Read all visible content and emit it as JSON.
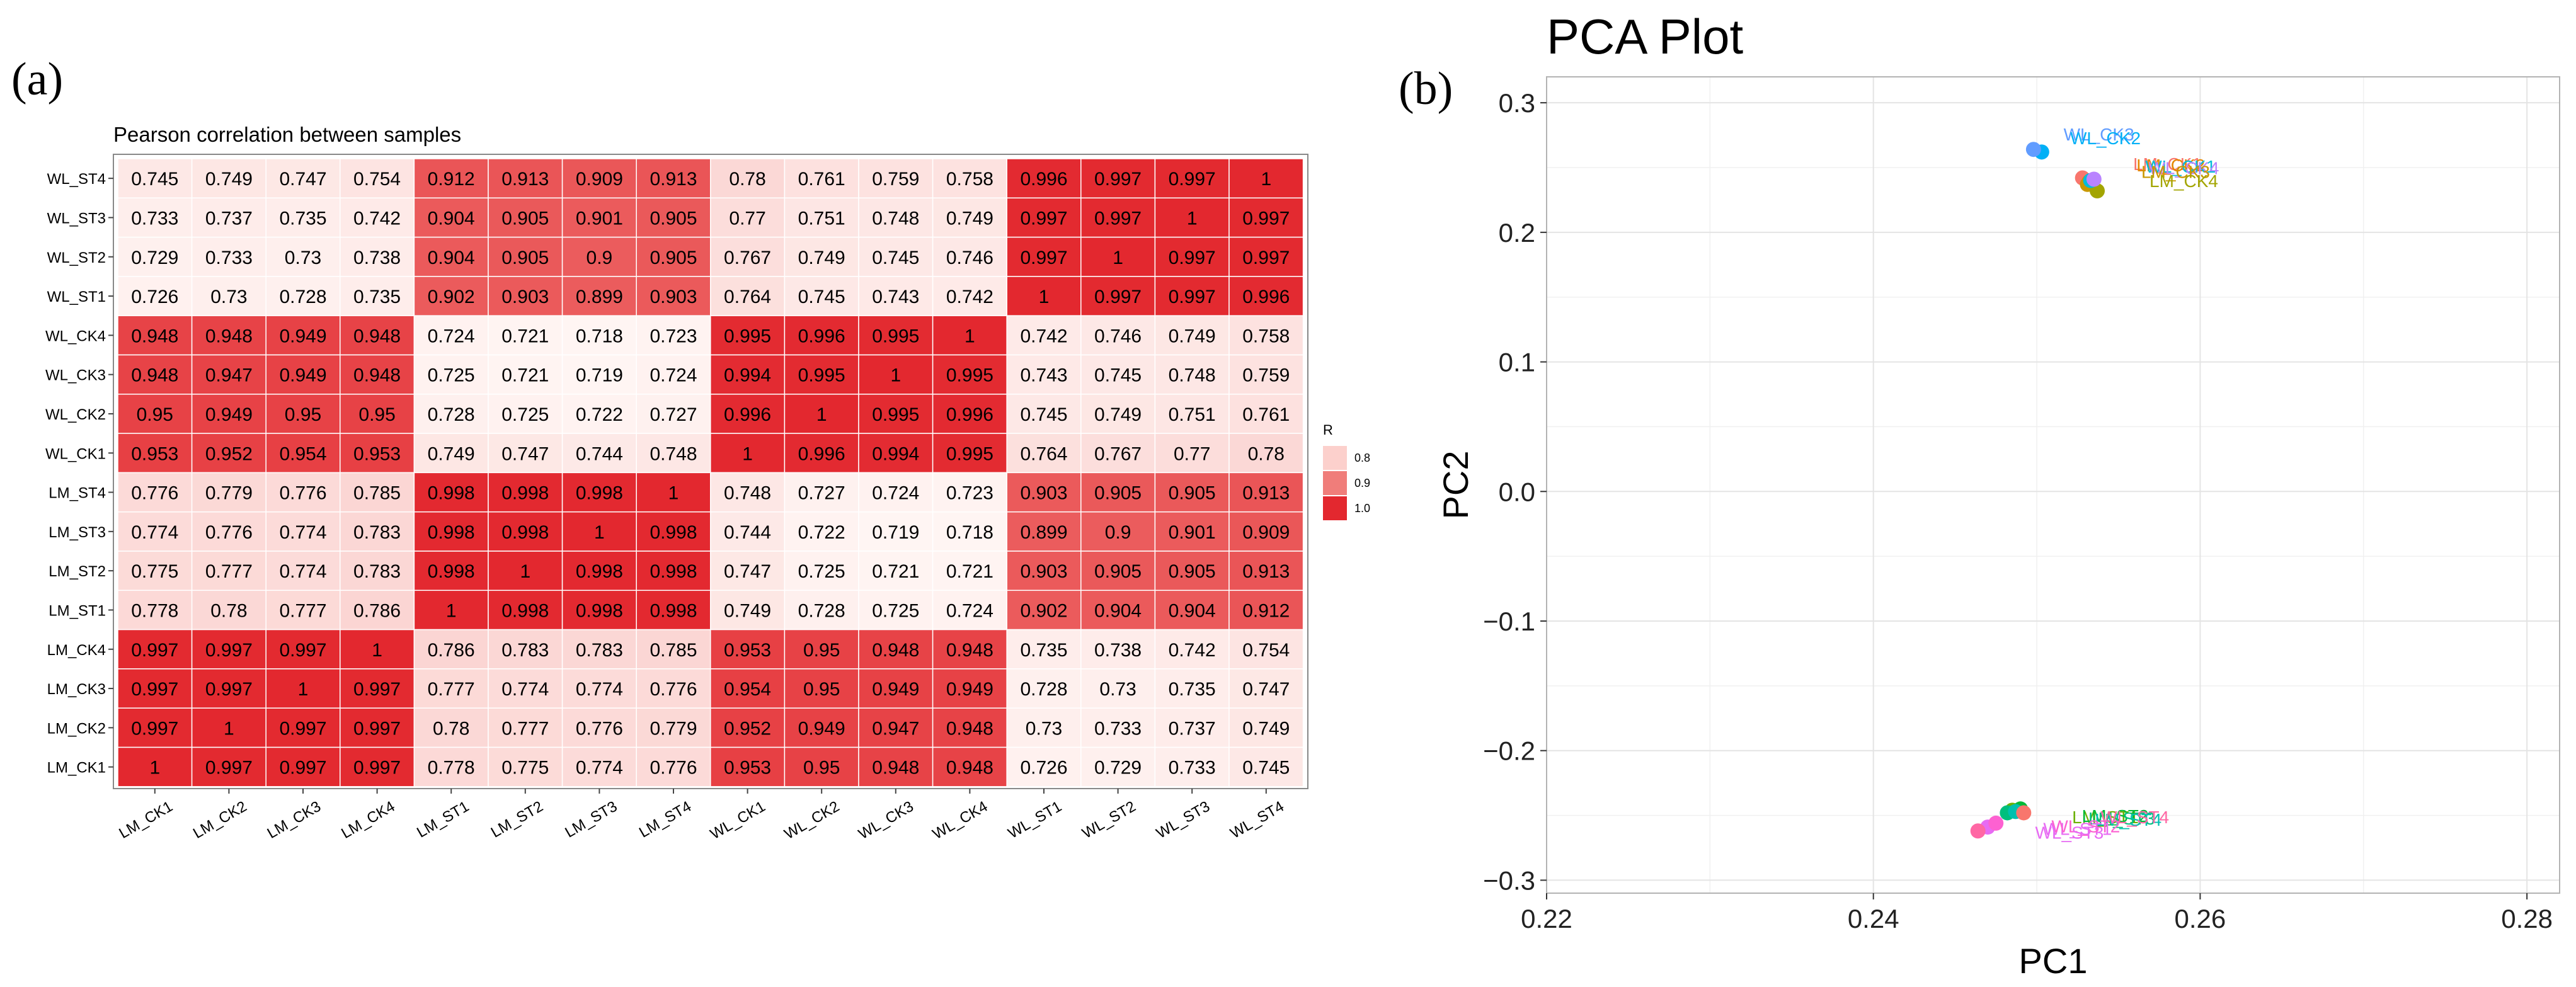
{
  "panels": {
    "a_label": "(a)",
    "b_label": "(b)"
  },
  "chart_data": [
    {
      "type": "heatmap",
      "title": "Pearson correlation between samples",
      "x_categories": [
        "LM_CK1",
        "LM_CK2",
        "LM_CK3",
        "LM_CK4",
        "LM_ST1",
        "LM_ST2",
        "LM_ST3",
        "LM_ST4",
        "WL_CK1",
        "WL_CK2",
        "WL_CK3",
        "WL_CK4",
        "WL_ST1",
        "WL_ST2",
        "WL_ST3",
        "WL_ST4"
      ],
      "y_categories_top_to_bottom": [
        "WL_ST4",
        "WL_ST3",
        "WL_ST2",
        "WL_ST1",
        "WL_CK4",
        "WL_CK3",
        "WL_CK2",
        "WL_CK1",
        "LM_ST4",
        "LM_ST3",
        "LM_ST2",
        "LM_ST1",
        "LM_CK4",
        "LM_CK3",
        "LM_CK2",
        "LM_CK1"
      ],
      "values": [
        [
          "0.745",
          "0.749",
          "0.747",
          "0.754",
          "0.912",
          "0.913",
          "0.909",
          "0.913",
          "0.78",
          "0.761",
          "0.759",
          "0.758",
          "0.996",
          "0.997",
          "0.997",
          "1"
        ],
        [
          "0.733",
          "0.737",
          "0.735",
          "0.742",
          "0.904",
          "0.905",
          "0.901",
          "0.905",
          "0.77",
          "0.751",
          "0.748",
          "0.749",
          "0.997",
          "0.997",
          "1",
          "0.997"
        ],
        [
          "0.729",
          "0.733",
          "0.73",
          "0.738",
          "0.904",
          "0.905",
          "0.9",
          "0.905",
          "0.767",
          "0.749",
          "0.745",
          "0.746",
          "0.997",
          "1",
          "0.997",
          "0.997"
        ],
        [
          "0.726",
          "0.73",
          "0.728",
          "0.735",
          "0.902",
          "0.903",
          "0.899",
          "0.903",
          "0.764",
          "0.745",
          "0.743",
          "0.742",
          "1",
          "0.997",
          "0.997",
          "0.996"
        ],
        [
          "0.948",
          "0.948",
          "0.949",
          "0.948",
          "0.724",
          "0.721",
          "0.718",
          "0.723",
          "0.995",
          "0.996",
          "0.995",
          "1",
          "0.742",
          "0.746",
          "0.749",
          "0.758"
        ],
        [
          "0.948",
          "0.947",
          "0.949",
          "0.948",
          "0.725",
          "0.721",
          "0.719",
          "0.724",
          "0.994",
          "0.995",
          "1",
          "0.995",
          "0.743",
          "0.745",
          "0.748",
          "0.759"
        ],
        [
          "0.95",
          "0.949",
          "0.95",
          "0.95",
          "0.728",
          "0.725",
          "0.722",
          "0.727",
          "0.996",
          "1",
          "0.995",
          "0.996",
          "0.745",
          "0.749",
          "0.751",
          "0.761"
        ],
        [
          "0.953",
          "0.952",
          "0.954",
          "0.953",
          "0.749",
          "0.747",
          "0.744",
          "0.748",
          "1",
          "0.996",
          "0.994",
          "0.995",
          "0.764",
          "0.767",
          "0.77",
          "0.78"
        ],
        [
          "0.776",
          "0.779",
          "0.776",
          "0.785",
          "0.998",
          "0.998",
          "0.998",
          "1",
          "0.748",
          "0.727",
          "0.724",
          "0.723",
          "0.903",
          "0.905",
          "0.905",
          "0.913"
        ],
        [
          "0.774",
          "0.776",
          "0.774",
          "0.783",
          "0.998",
          "0.998",
          "1",
          "0.998",
          "0.744",
          "0.722",
          "0.719",
          "0.718",
          "0.899",
          "0.9",
          "0.901",
          "0.909"
        ],
        [
          "0.775",
          "0.777",
          "0.774",
          "0.783",
          "0.998",
          "1",
          "0.998",
          "0.998",
          "0.747",
          "0.725",
          "0.721",
          "0.721",
          "0.903",
          "0.905",
          "0.905",
          "0.913"
        ],
        [
          "0.778",
          "0.78",
          "0.777",
          "0.786",
          "1",
          "0.998",
          "0.998",
          "0.998",
          "0.749",
          "0.728",
          "0.725",
          "0.724",
          "0.902",
          "0.904",
          "0.904",
          "0.912"
        ],
        [
          "0.997",
          "0.997",
          "0.997",
          "1",
          "0.786",
          "0.783",
          "0.783",
          "0.785",
          "0.953",
          "0.95",
          "0.948",
          "0.948",
          "0.735",
          "0.738",
          "0.742",
          "0.754"
        ],
        [
          "0.997",
          "0.997",
          "1",
          "0.997",
          "0.777",
          "0.774",
          "0.774",
          "0.776",
          "0.954",
          "0.95",
          "0.949",
          "0.949",
          "0.728",
          "0.73",
          "0.735",
          "0.747"
        ],
        [
          "0.997",
          "1",
          "0.997",
          "0.997",
          "0.78",
          "0.777",
          "0.776",
          "0.779",
          "0.952",
          "0.949",
          "0.947",
          "0.948",
          "0.73",
          "0.733",
          "0.737",
          "0.749"
        ],
        [
          "1",
          "0.997",
          "0.997",
          "0.997",
          "0.778",
          "0.775",
          "0.774",
          "0.776",
          "0.953",
          "0.95",
          "0.948",
          "0.948",
          "0.726",
          "0.729",
          "0.733",
          "0.745"
        ]
      ],
      "legend": {
        "title": "R",
        "entries": [
          {
            "label": "0.8",
            "color": "#fcd0cc"
          },
          {
            "label": "0.9",
            "color": "#f07d7a"
          },
          {
            "label": "1.0",
            "color": "#e3282f"
          }
        ]
      },
      "colors": {
        "low": "#fff5f3",
        "mid": "#f07d7a",
        "high": "#e3282f"
      }
    },
    {
      "type": "scatter",
      "title": "PCA Plot",
      "xlabel": "PC1",
      "ylabel": "PC2",
      "xlim": [
        0.22,
        0.282
      ],
      "ylim": [
        -0.31,
        0.32
      ],
      "xticks": [
        0.22,
        0.24,
        0.26,
        0.28
      ],
      "xtick_labels": [
        "0.22",
        "0.24",
        "0.26",
        "0.28"
      ],
      "yticks": [
        -0.3,
        -0.2,
        -0.1,
        0.0,
        0.1,
        0.2,
        0.3
      ],
      "ytick_labels": [
        "−0.3",
        "−0.2",
        "−0.1",
        "0.0",
        "0.1",
        "0.2",
        "0.3"
      ],
      "grid": true,
      "points": [
        {
          "name": "LM_CK1",
          "x": 0.2528,
          "y": 0.242,
          "color": "#f8766d"
        },
        {
          "name": "LM_CK2",
          "x": 0.2532,
          "y": 0.239,
          "color": "#e58700"
        },
        {
          "name": "LM_CK3",
          "x": 0.2531,
          "y": 0.237,
          "color": "#c99800"
        },
        {
          "name": "LM_CK4",
          "x": 0.2537,
          "y": 0.232,
          "color": "#a3a500"
        },
        {
          "name": "LM_ST1",
          "x": 0.2485,
          "y": -0.246,
          "color": "#6bb100"
        },
        {
          "name": "LM_ST2",
          "x": 0.249,
          "y": -0.245,
          "color": "#00ba38"
        },
        {
          "name": "LM_ST3",
          "x": 0.2482,
          "y": -0.248,
          "color": "#00bf7d"
        },
        {
          "name": "LM_ST4",
          "x": 0.2487,
          "y": -0.247,
          "color": "#00c0af"
        },
        {
          "name": "WL_CK1",
          "x": 0.2533,
          "y": 0.24,
          "color": "#00bcd8"
        },
        {
          "name": "WL_CK2",
          "x": 0.2503,
          "y": 0.262,
          "color": "#00b0f6"
        },
        {
          "name": "WL_CK3",
          "x": 0.2498,
          "y": 0.264,
          "color": "#619cff"
        },
        {
          "name": "WL_CK4",
          "x": 0.2535,
          "y": 0.241,
          "color": "#b983ff"
        },
        {
          "name": "WL_ST1",
          "x": 0.247,
          "y": -0.259,
          "color": "#e76bf3"
        },
        {
          "name": "WL_ST2",
          "x": 0.2475,
          "y": -0.256,
          "color": "#fd61d1"
        },
        {
          "name": "WL_ST3",
          "x": 0.2464,
          "y": -0.262,
          "color": "#ff67a4"
        },
        {
          "name": "WL_ST4",
          "x": 0.2492,
          "y": -0.248,
          "color": "#f8766d"
        }
      ],
      "text_labels": [
        {
          "text": "WL_CK3",
          "x": 0.2538,
          "y": 0.271,
          "color": "#619cff"
        },
        {
          "text": "WL_CK2",
          "x": 0.2542,
          "y": 0.268,
          "color": "#00b0f6"
        },
        {
          "text": "LM_CK1",
          "x": 0.258,
          "y": 0.248,
          "color": "#f8766d"
        },
        {
          "text": "LM_CK2",
          "x": 0.2582,
          "y": 0.247,
          "color": "#e58700"
        },
        {
          "text": "WL_CK1",
          "x": 0.2588,
          "y": 0.246,
          "color": "#00bcd8"
        },
        {
          "text": "WL_CK4",
          "x": 0.259,
          "y": 0.245,
          "color": "#b983ff"
        },
        {
          "text": "LM_CK3",
          "x": 0.2585,
          "y": 0.242,
          "color": "#c99800"
        },
        {
          "text": "LM_CK4",
          "x": 0.259,
          "y": 0.235,
          "color": "#a3a500"
        },
        {
          "text": "LM_ST1",
          "x": 0.2542,
          "y": -0.256,
          "color": "#6bb100"
        },
        {
          "text": "LM_ST2",
          "x": 0.2548,
          "y": -0.255,
          "color": "#00ba38"
        },
        {
          "text": "LM_ST3",
          "x": 0.2552,
          "y": -0.257,
          "color": "#00bf7d"
        },
        {
          "text": "LM_ST4",
          "x": 0.2556,
          "y": -0.258,
          "color": "#00c0af"
        },
        {
          "text": "WL_ST4",
          "x": 0.256,
          "y": -0.256,
          "color": "#ff67a4"
        },
        {
          "text": "WL_ST1",
          "x": 0.2525,
          "y": -0.265,
          "color": "#e76bf3"
        },
        {
          "text": "WL_ST2",
          "x": 0.253,
          "y": -0.263,
          "color": "#fd61d1"
        },
        {
          "text": "WL_ST3",
          "x": 0.252,
          "y": -0.268,
          "color": "#e76bf3"
        }
      ]
    }
  ]
}
